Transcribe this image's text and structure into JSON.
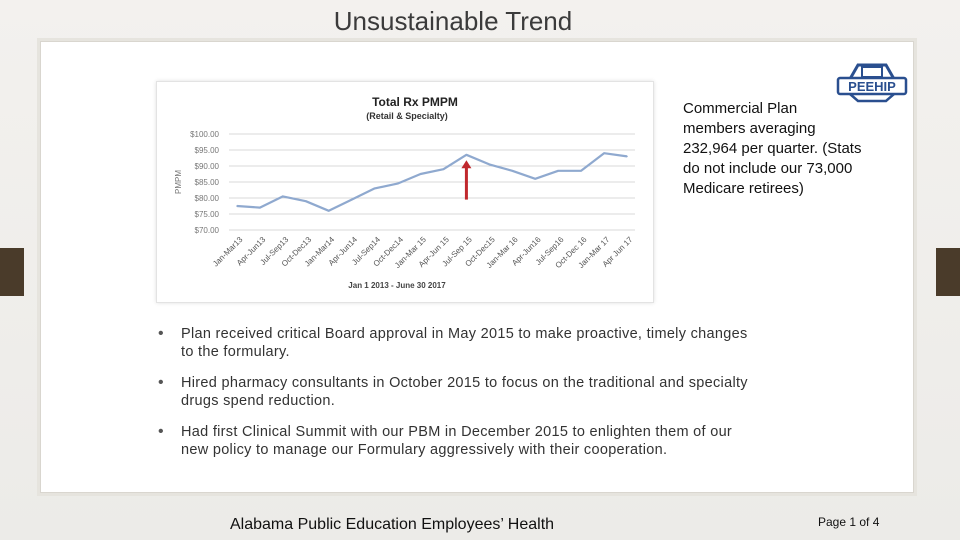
{
  "slide": {
    "title": "Unsustainable Trend",
    "callout": "Commercial Plan members averaging 232,964 per quarter. (Stats do not include our 73,000 Medicare retirees)",
    "bullets": [
      "Plan received critical Board approval in May 2015 to make proactive, timely changes to the formulary.",
      "Hired pharmacy consultants in October 2015 to focus on the traditional and specialty drugs spend reduction.",
      "Had first Clinical Summit with our PBM in December 2015 to enlighten them of our new policy to manage our Formulary aggressively with their cooperation."
    ],
    "footer": "Alabama Public Education Employees’ Health",
    "page_number": "Page 1 of 4"
  },
  "logo": {
    "text": "PEEHIP",
    "color": "#2a4f8f"
  },
  "colors": {
    "line": "#8fa9cf",
    "arrow": "#c0282d",
    "grid": "#d9d9d9",
    "tab": "#4a3b2a"
  },
  "chart_data": {
    "type": "line",
    "title": "Total Rx PMPM",
    "subtitle": "(Retail & Specialty)",
    "xlabel": "Jan 1 2013 - June 30 2017",
    "ylabel": "PMPM",
    "ylim": [
      70,
      100
    ],
    "y_ticks": [
      "$100.00",
      "$95.00",
      "$90.00",
      "$85.00",
      "$80.00",
      "$75.00",
      "$70.00"
    ],
    "y_tick_values": [
      100,
      95,
      90,
      85,
      80,
      75,
      70
    ],
    "categories": [
      "Jan-Mar13",
      "Apr-Jun13",
      "Jul-Sep13",
      "Oct-Dec13",
      "Jan-Mar14",
      "Apr-Jun14",
      "Jul-Sep14",
      "Oct-Dec14",
      "Jan-Mar 15",
      "Apr-Jun 15",
      "Jul-Sep 15",
      "Oct-Dec15",
      "Jan-Mar 16",
      "Apr-Jun16",
      "Jul-Sep16",
      "Oct-Dec 16",
      "Jan-Mar 17",
      "Apr Jun 17"
    ],
    "values": [
      77.5,
      77.0,
      80.5,
      79.0,
      76.0,
      79.5,
      83.0,
      84.5,
      87.5,
      89.0,
      93.5,
      90.5,
      88.5,
      86.0,
      88.5,
      88.5,
      94.0,
      93.0
    ],
    "annotation": {
      "type": "arrow",
      "at_category": "Jul-Sep 15",
      "from": 79.5,
      "to": 91.5
    },
    "grid": true,
    "legend": "none"
  }
}
